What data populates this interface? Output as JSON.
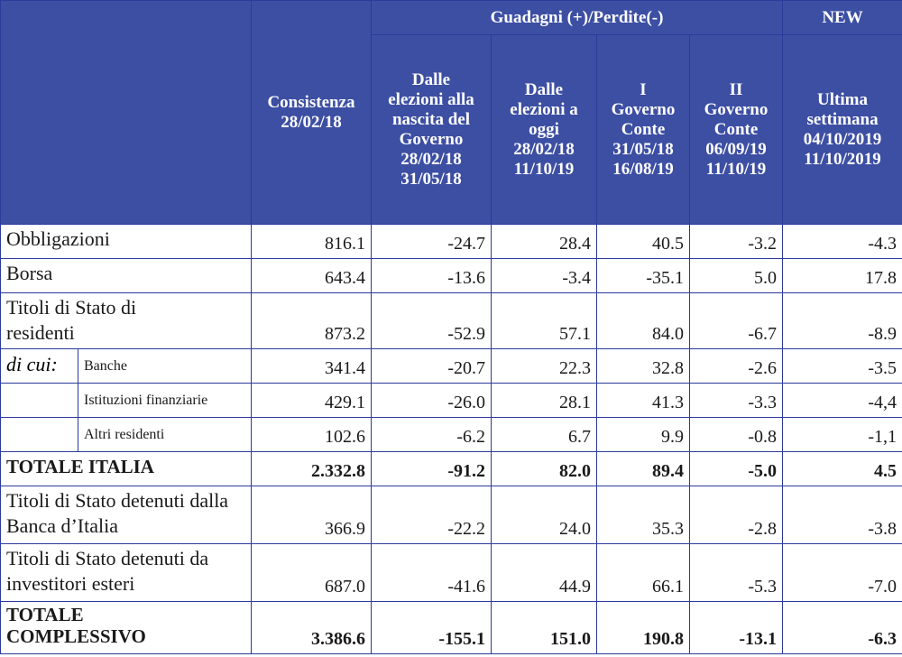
{
  "chart_data": {
    "type": "table",
    "header": {
      "group_gains": "Guadagni (+)/Perdite(-)",
      "group_new": "NEW",
      "col1_lines": [
        "Consistenza",
        "28/02/18"
      ],
      "col2_lines": [
        "Dalle",
        "elezioni alla",
        "nascita del",
        "Governo",
        "28/02/18",
        "31/05/18"
      ],
      "col3_lines": [
        "Dalle",
        "elezioni a",
        "oggi",
        "28/02/18",
        "11/10/19"
      ],
      "col4_lines": [
        "I",
        "Governo",
        "Conte",
        "31/05/18",
        "16/08/19"
      ],
      "col5_lines": [
        "II",
        "Governo",
        "Conte",
        "06/09/19",
        "11/10/19"
      ],
      "col6_lines": [
        "Ultima",
        "settimana",
        "04/10/2019",
        "11/10/2019"
      ]
    },
    "rows": [
      {
        "label": "Obbligazioni",
        "values": [
          "816.1",
          "-24.7",
          "28.4",
          "40.5",
          "-3.2",
          "-4.3"
        ]
      },
      {
        "label": "Borsa",
        "values": [
          "643.4",
          "-13.6",
          "-3.4",
          "-35.1",
          "5.0",
          "17.8"
        ]
      },
      {
        "label": "Titoli di Stato di residenti",
        "values": [
          "873.2",
          "-52.9",
          "57.1",
          "84.0",
          "-6.7",
          "-8.9"
        ]
      },
      {
        "prefix": "di cui:",
        "label": "Banche",
        "values": [
          "341.4",
          "-20.7",
          "22.3",
          "32.8",
          "-2.6",
          "-3.5"
        ]
      },
      {
        "label": "Istituzioni finanziarie",
        "values": [
          "429.1",
          "-26.0",
          "28.1",
          "41.3",
          "-3.3",
          "-4,4"
        ]
      },
      {
        "label": "Altri residenti",
        "values": [
          "102.6",
          "-6.2",
          "6.7",
          "9.9",
          "-0.8",
          "-1,1"
        ]
      },
      {
        "label": "TOTALE ITALIA",
        "values": [
          "2.332.8",
          "-91.2",
          "82.0",
          "89.4",
          "-5.0",
          "4.5"
        ]
      },
      {
        "label": "Titoli di Stato detenuti dalla Banca d’Italia",
        "values": [
          "366.9",
          "-22.2",
          "24.0",
          "35.3",
          "-2.8",
          "-3.8"
        ]
      },
      {
        "label": "Titoli di Stato detenuti da investitori esteri",
        "values": [
          "687.0",
          "-41.6",
          "44.9",
          "66.1",
          "-5.3",
          "-7.0"
        ]
      },
      {
        "label": "TOTALE COMPLESSIVO",
        "values": [
          "3.386.6",
          "-155.1",
          "151.0",
          "190.8",
          "-13.1",
          "-6.3"
        ]
      }
    ]
  },
  "colors": {
    "header_bg": "#3d4fa3",
    "header_text": "#ffffff",
    "border": "#2c3a9c"
  }
}
